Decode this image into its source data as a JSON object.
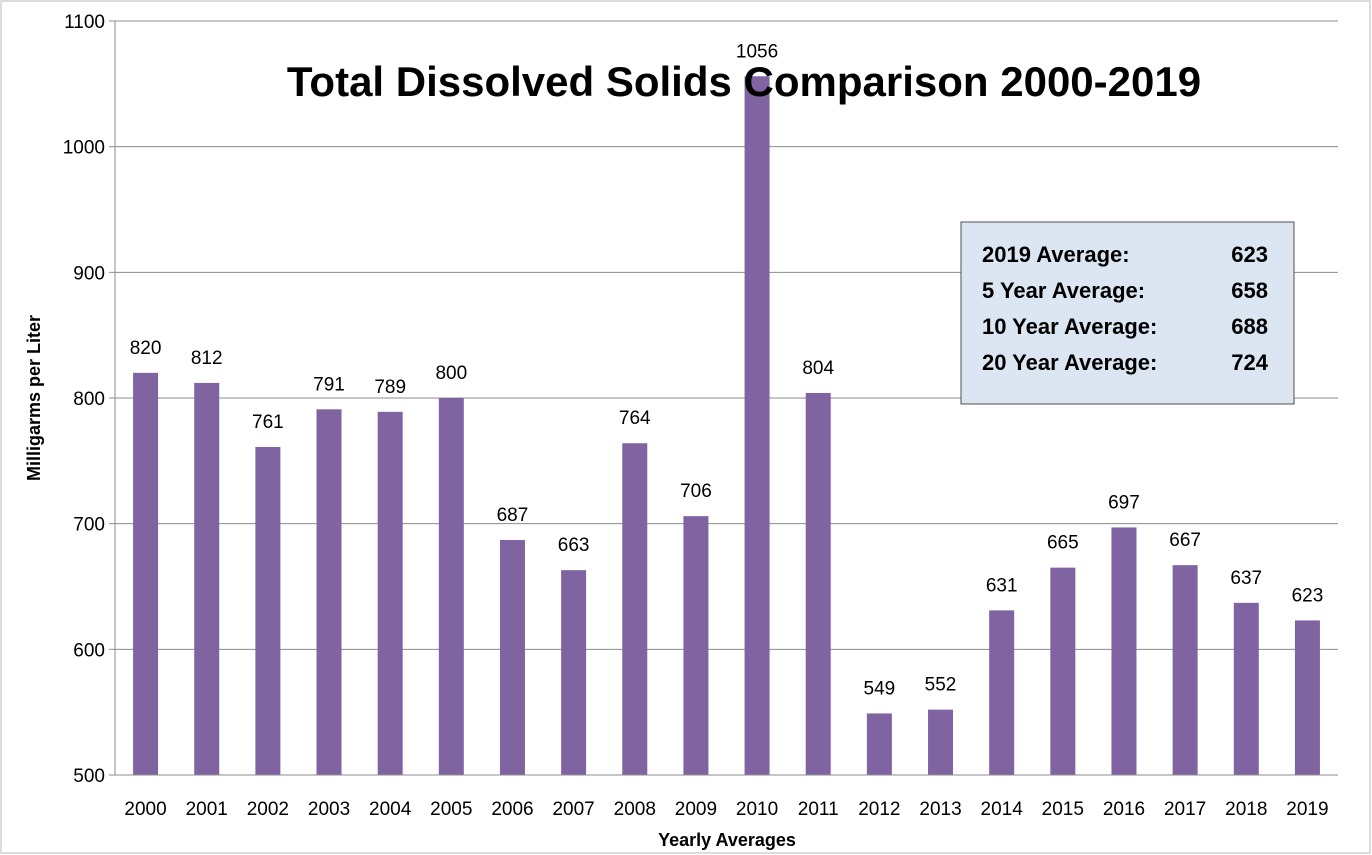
{
  "chart_data": {
    "type": "bar",
    "title": "Total Dissolved Solids Comparison 2000-2019",
    "xlabel": "Yearly Averages",
    "ylabel": "Milligarms per Liter",
    "ylim": [
      500,
      1100
    ],
    "yticks": [
      500,
      600,
      700,
      800,
      900,
      1000,
      1100
    ],
    "grid": true,
    "bar_color": "#8064a2",
    "categories": [
      "2000",
      "2001",
      "2002",
      "2003",
      "2004",
      "2005",
      "2006",
      "2007",
      "2008",
      "2009",
      "2010",
      "2011",
      "2012",
      "2013",
      "2014",
      "2015",
      "2016",
      "2017",
      "2018",
      "2019"
    ],
    "values": [
      820,
      812,
      761,
      791,
      789,
      800,
      687,
      663,
      764,
      706,
      1056,
      804,
      549,
      552,
      631,
      665,
      697,
      667,
      637,
      623
    ],
    "annotation": [
      {
        "label": "2019 Average:",
        "value": "623"
      },
      {
        "label": "5 Year Average:",
        "value": "658"
      },
      {
        "label": "10 Year Average:",
        "value": "688"
      },
      {
        "label": "20 Year Average:",
        "value": "724"
      }
    ]
  }
}
